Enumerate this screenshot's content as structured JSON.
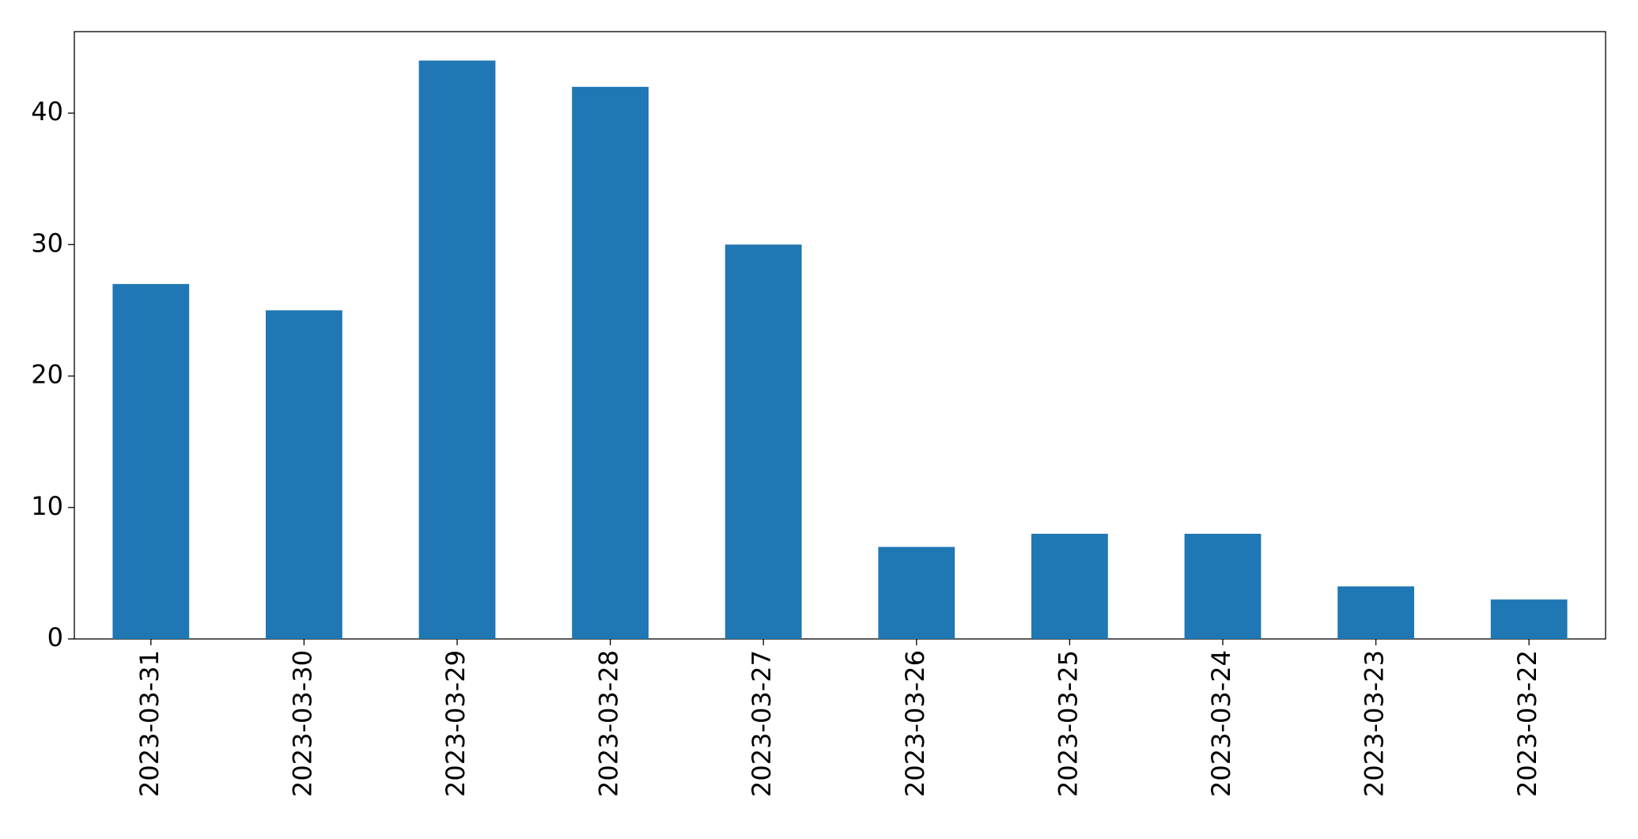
{
  "chart_data": {
    "type": "bar",
    "categories": [
      "2023-03-31",
      "2023-03-30",
      "2023-03-29",
      "2023-03-28",
      "2023-03-27",
      "2023-03-26",
      "2023-03-25",
      "2023-03-24",
      "2023-03-23",
      "2023-03-22"
    ],
    "values": [
      27,
      25,
      44,
      42,
      30,
      7,
      8,
      8,
      4,
      3
    ],
    "color": "#1f77b4",
    "ylim": [
      0,
      46.2
    ],
    "yticks": [
      0,
      10,
      20,
      30,
      40
    ],
    "grid": false
  }
}
